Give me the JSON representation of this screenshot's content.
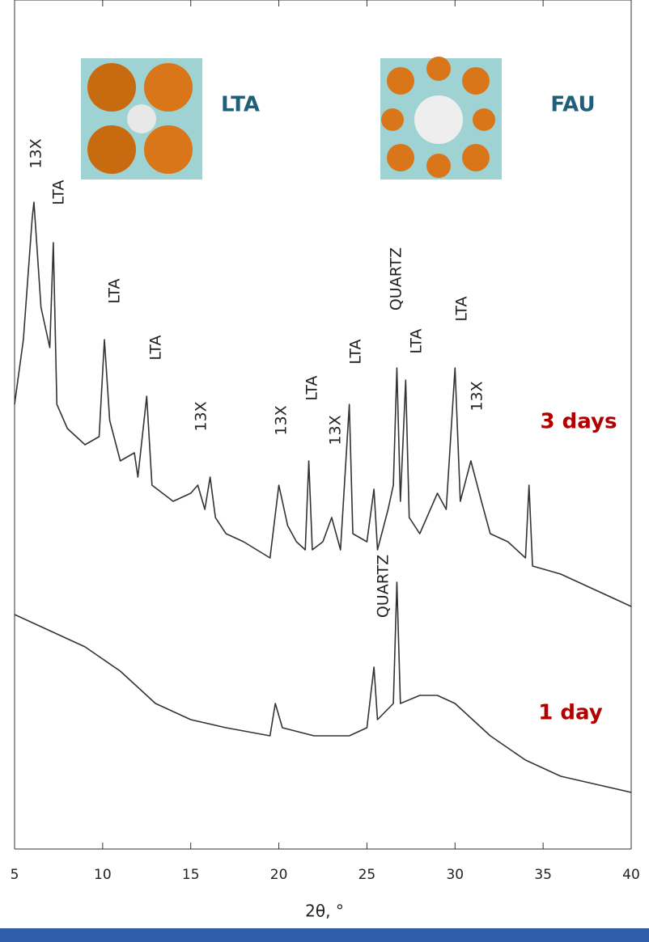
{
  "chart_data": {
    "type": "line",
    "xlabel": "2θ, °",
    "xlim": [
      5,
      40
    ],
    "xticks": [
      5,
      10,
      15,
      20,
      25,
      30,
      35,
      40
    ],
    "ylim": [
      0,
      105
    ],
    "structure_labels": [
      "LTA",
      "FAU"
    ],
    "annotations": [
      "13X",
      "LTA",
      "LTA",
      "LTA",
      "13X",
      "13X",
      "LTA",
      "13X",
      "LTA",
      "QUARTZ",
      "LTA",
      "LTA",
      "13X",
      "QUARTZ"
    ],
    "series": [
      {
        "name": "3 days",
        "color": "#333333",
        "x": [
          5,
          5.5,
          6,
          6.1,
          6.5,
          7,
          7.2,
          7.4,
          8,
          9,
          9.8,
          10.1,
          10.4,
          11,
          11.8,
          12,
          12.5,
          12.8,
          14,
          15,
          15.4,
          15.8,
          16.1,
          16.4,
          17,
          18,
          19.5,
          20,
          20.5,
          21,
          21.5,
          21.7,
          21.9,
          22.5,
          23,
          23.5,
          24,
          24.2,
          25,
          25.4,
          25.6,
          26.2,
          26.5,
          26.7,
          26.9,
          27.2,
          27.4,
          28,
          29,
          29.5,
          30,
          30.3,
          30.9,
          31.5,
          32,
          33,
          34,
          34.2,
          34.4,
          36,
          38,
          40
        ],
        "values": [
          55,
          63,
          78,
          80,
          67,
          62,
          75,
          55,
          52,
          50,
          51,
          63,
          53,
          48,
          49,
          46,
          56,
          45,
          43,
          44,
          45,
          42,
          46,
          41,
          39,
          38,
          36,
          45,
          40,
          38,
          37,
          48,
          37,
          38,
          41,
          37,
          55,
          39,
          38,
          44.5,
          37,
          42,
          45,
          59.5,
          43,
          58,
          41,
          39,
          44,
          42,
          59.5,
          43,
          48,
          43,
          39,
          38,
          36,
          45,
          35,
          34,
          32,
          30
        ]
      },
      {
        "name": "1 day",
        "color": "#333333",
        "x": [
          5,
          7,
          9,
          11,
          13,
          15,
          17,
          19.5,
          19.8,
          20.2,
          22,
          24,
          25,
          25.4,
          25.6,
          26.5,
          26.7,
          26.9,
          28,
          29,
          30,
          31,
          32,
          34,
          36,
          38,
          40
        ],
        "values": [
          29,
          27,
          25,
          22,
          18,
          16,
          15,
          14,
          18,
          15,
          14,
          14,
          15,
          22.5,
          16,
          18,
          33,
          18,
          19,
          19,
          18,
          16,
          14,
          11,
          9,
          8,
          7
        ]
      }
    ]
  }
}
